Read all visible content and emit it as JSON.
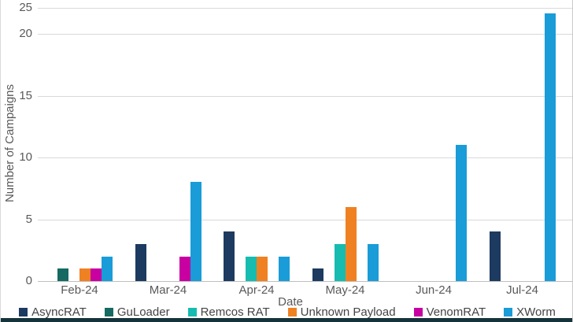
{
  "chart_data": {
    "type": "bar",
    "title": "",
    "xlabel": "Date",
    "ylabel": "Number of Campaigns",
    "categories": [
      "Feb-24",
      "Mar-24",
      "Apr-24",
      "May-24",
      "Jun-24",
      "Jul-24"
    ],
    "series": [
      {
        "name": "AsyncRAT",
        "color": "#1d3a60",
        "values": [
          0,
          3,
          4,
          1,
          0,
          4
        ]
      },
      {
        "name": "GuLoader",
        "color": "#166a62",
        "values": [
          1,
          0,
          0,
          0,
          0,
          0
        ]
      },
      {
        "name": "Remcos RAT",
        "color": "#16bcb0",
        "values": [
          0,
          0,
          2,
          3,
          0,
          0
        ]
      },
      {
        "name": "Unknown Payload",
        "color": "#ef8122",
        "values": [
          1,
          0,
          2,
          6,
          0,
          0
        ]
      },
      {
        "name": "VenomRAT",
        "color": "#c800a2",
        "values": [
          1,
          2,
          0,
          0,
          0,
          0
        ]
      },
      {
        "name": "XWorm",
        "color": "#199cd8",
        "values": [
          2,
          8,
          2,
          3,
          11,
          24
        ]
      }
    ],
    "y_ticks": [
      0,
      5,
      10,
      15,
      20,
      25
    ],
    "ylim": [
      0,
      25
    ],
    "grid": true,
    "legend_position": "bottom"
  },
  "colors": {
    "gridline": "#d9d9d9",
    "axis_line": "#bfbfbf",
    "axis_text": "#595959",
    "legend_text": "#444444",
    "bottom_strip": "#14333a"
  }
}
